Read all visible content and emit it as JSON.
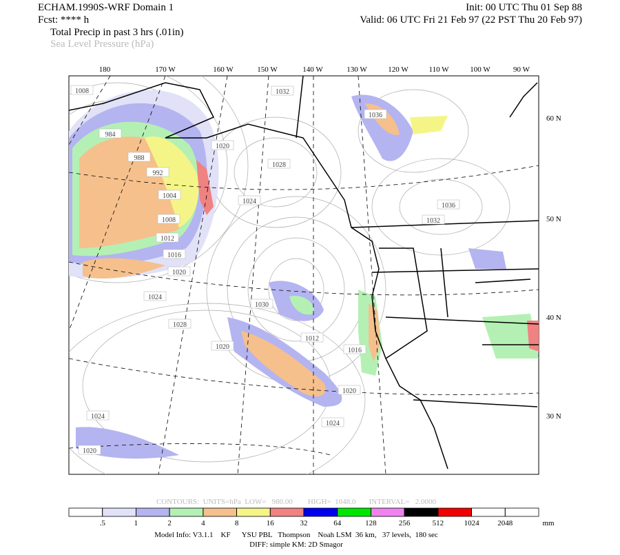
{
  "header": {
    "model": "ECHAM.1990S-WRF Domain 1",
    "forecast": "Fcst: **** h",
    "init": "Init: 00 UTC Thu 01 Sep 88",
    "valid": "Valid: 06 UTC Fri 21 Feb 97 (22 PST Thu 20 Feb 97)",
    "field": "Total Precip in past 3 hrs (.01in)",
    "overlay": "Sea Level Pressure (hPa)"
  },
  "map": {
    "lon_labels": [
      "180",
      "170 W",
      "160 W",
      "150 W",
      "140 W",
      "130 W",
      "120 W",
      "110 W",
      "100 W",
      "90 W"
    ],
    "lat_labels": [
      "60 N",
      "50 N",
      "40 N",
      "30 N"
    ],
    "contour_labels": [
      "1008",
      "984",
      "988",
      "992",
      "1004",
      "1008",
      "1012",
      "1016",
      "1020",
      "1024",
      "1028",
      "1020",
      "1032",
      "1036",
      "1020",
      "1028",
      "1024",
      "1036",
      "1032",
      "1030",
      "1012",
      "1016",
      "1020",
      "1024",
      "1024",
      "1020"
    ]
  },
  "contour_info": "CONTOURS:  UNITS=hPa  LOW=   980.00        HIGH=  1048.0       INTERVAL=   2.0000",
  "colorbar": {
    "levels": [
      {
        "value": 0.5,
        "label": ".5"
      },
      1,
      2,
      4,
      8,
      16,
      32,
      64,
      128,
      256,
      512,
      1024,
      2048
    ],
    "colors": [
      "#ffffff",
      "#e1e1f7",
      "#b4b4f0",
      "#b4f0b4",
      "#f5c08c",
      "#f5f587",
      "#f08282",
      "#0000f0",
      "#00e600",
      "#f082f0",
      "#000000",
      "#f00000",
      "#ffffff",
      "#ffffff"
    ],
    "unit": "mm"
  },
  "footer": [
    "Model Info: V3.1.1    KF      YSU PBL   Thompson    Noah LSM  36 km,   37 levels,  180 sec",
    "DIFF: simple KM: 2D Smagor"
  ]
}
